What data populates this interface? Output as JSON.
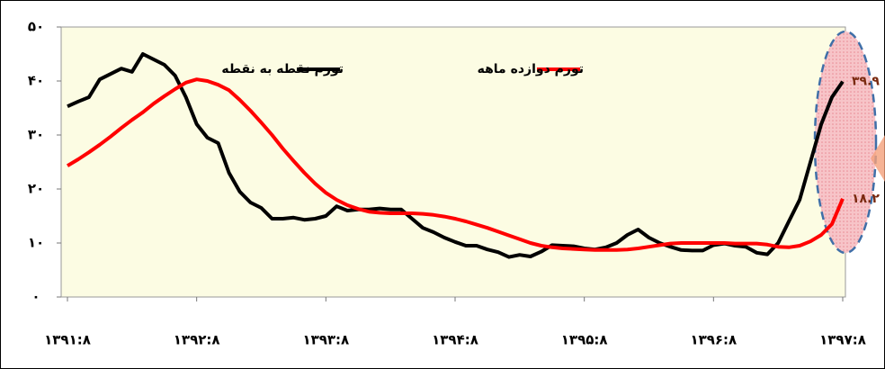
{
  "chart_data": {
    "type": "line",
    "categories": [
      "۱۳۹۱:۸",
      null,
      null,
      null,
      null,
      null,
      null,
      null,
      null,
      null,
      null,
      null,
      "۱۳۹۲:۸",
      null,
      null,
      null,
      null,
      null,
      null,
      null,
      null,
      null,
      null,
      null,
      "۱۳۹۳:۸",
      null,
      null,
      null,
      null,
      null,
      null,
      null,
      null,
      null,
      null,
      null,
      "۱۳۹۴:۸",
      null,
      null,
      null,
      null,
      null,
      null,
      null,
      null,
      null,
      null,
      null,
      "۱۳۹۵:۸",
      null,
      null,
      null,
      null,
      null,
      null,
      null,
      null,
      null,
      null,
      null,
      "۱۳۹۶:۸",
      null,
      null,
      null,
      null,
      null,
      null,
      null,
      null,
      null,
      null,
      null,
      "۱۳۹۷:۸"
    ],
    "series": [
      {
        "name": "تورم نقطه به نقطه",
        "color": "#000000",
        "values": [
          35.3,
          36.2,
          37,
          40.3,
          41.3,
          42.3,
          41.7,
          45,
          44,
          43,
          41,
          37,
          32,
          29.5,
          28.5,
          23,
          19.5,
          17.5,
          16.5,
          14.5,
          14.5,
          14.7,
          14.3,
          14.5,
          15,
          16.8,
          16,
          16.2,
          16.2,
          16.4,
          16.2,
          16.2,
          14.5,
          12.8,
          12,
          11,
          10.2,
          9.5,
          9.5,
          8.8,
          8.3,
          7.4,
          7.8,
          7.5,
          8.4,
          9.6,
          9.5,
          9.4,
          9,
          8.8,
          9.2,
          10,
          11.5,
          12.5,
          11,
          10,
          9.3,
          8.7,
          8.6,
          8.6,
          9.6,
          9.9,
          9.5,
          9.3,
          8.2,
          7.9,
          10,
          14,
          18,
          25,
          32,
          37,
          39.9
        ],
        "value_labels": [
          null,
          null,
          null,
          null,
          null,
          null,
          null,
          null,
          null,
          null,
          null,
          null,
          null,
          null,
          null,
          null,
          null,
          null,
          null,
          null,
          null,
          null,
          null,
          null,
          null,
          null,
          null,
          null,
          null,
          null,
          null,
          null,
          null,
          null,
          null,
          null,
          null,
          null,
          null,
          null,
          null,
          null,
          null,
          null,
          null,
          null,
          null,
          null,
          null,
          null,
          null,
          null,
          null,
          null,
          null,
          null,
          null,
          null,
          null,
          null,
          null,
          null,
          null,
          null,
          null,
          null,
          null,
          null,
          null,
          null,
          null,
          null,
          "۳۹.۹"
        ]
      },
      {
        "name": "تورم دوازده ماهه",
        "color": "#ff0000",
        "values": [
          24.3,
          25.5,
          26.8,
          28.2,
          29.7,
          31.3,
          32.8,
          34.2,
          35.8,
          37.2,
          38.5,
          39.7,
          40.3,
          40,
          39.3,
          38.3,
          36.5,
          34.5,
          32.3,
          30,
          27.5,
          25.2,
          23,
          21,
          19.3,
          18,
          17,
          16.3,
          15.8,
          15.6,
          15.5,
          15.5,
          15.5,
          15.4,
          15.2,
          14.9,
          14.5,
          14,
          13.4,
          12.8,
          12.1,
          11.4,
          10.7,
          10,
          9.5,
          9.2,
          9,
          8.9,
          8.8,
          8.7,
          8.7,
          8.7,
          8.8,
          9,
          9.3,
          9.6,
          9.9,
          10,
          10,
          10,
          10,
          10,
          9.9,
          9.9,
          9.9,
          9.7,
          9.3,
          9.2,
          9.5,
          10.3,
          11.5,
          13.5,
          18.2
        ],
        "value_labels": [
          null,
          null,
          null,
          null,
          null,
          null,
          null,
          null,
          null,
          null,
          null,
          null,
          null,
          null,
          null,
          null,
          null,
          null,
          null,
          null,
          null,
          null,
          null,
          null,
          null,
          null,
          null,
          null,
          null,
          null,
          null,
          null,
          null,
          null,
          null,
          null,
          null,
          null,
          null,
          null,
          null,
          null,
          null,
          null,
          null,
          null,
          null,
          null,
          null,
          null,
          null,
          null,
          null,
          null,
          null,
          null,
          null,
          null,
          null,
          null,
          null,
          null,
          null,
          null,
          null,
          null,
          null,
          null,
          null,
          null,
          null,
          null,
          "۱۸.۲"
        ]
      }
    ],
    "ylim": [
      0,
      50
    ],
    "yticks": [
      {
        "value": 0,
        "label": "۰"
      },
      {
        "value": 10,
        "label": "۱۰"
      },
      {
        "value": 20,
        "label": "۲۰"
      },
      {
        "value": 30,
        "label": "۳۰"
      },
      {
        "value": 40,
        "label": "۴۰"
      },
      {
        "value": 50,
        "label": "۵۰"
      }
    ],
    "grid": false
  }
}
